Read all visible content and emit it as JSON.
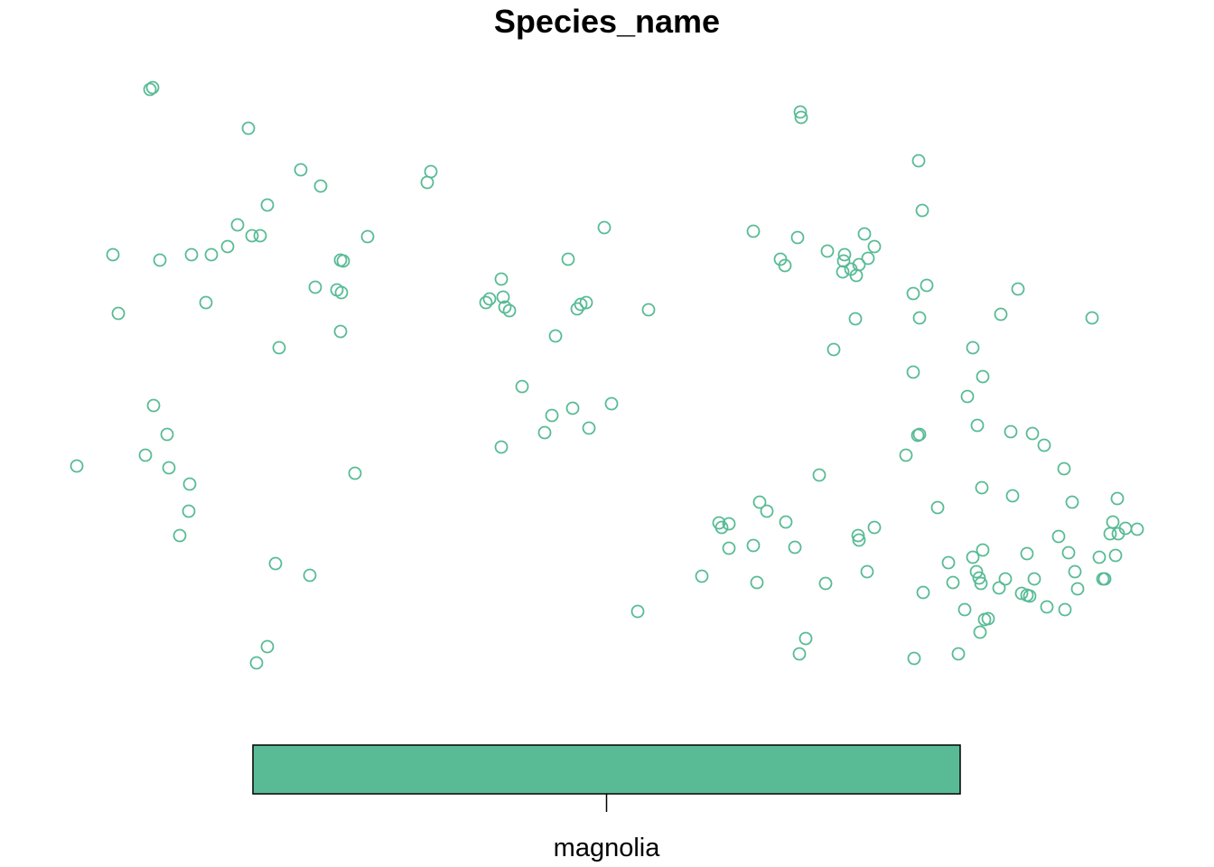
{
  "chart_data": {
    "type": "scatter",
    "title": "Species_name",
    "xlabel": "",
    "ylabel": "",
    "axes_shown": false,
    "grid": false,
    "marker": "open-circle",
    "series": [
      {
        "name": "magnolia",
        "color": "#58BB95",
        "points": [
          [
            166,
            99
          ],
          [
            169,
            97
          ],
          [
            275,
            142
          ],
          [
            333,
            188
          ],
          [
            355,
            206
          ],
          [
            473,
            202
          ],
          [
            477,
            190
          ],
          [
            125,
            282
          ],
          [
            177,
            288
          ],
          [
            212,
            282
          ],
          [
            234,
            282
          ],
          [
            252,
            273
          ],
          [
            263,
            249
          ],
          [
            279,
            261
          ],
          [
            288,
            261
          ],
          [
            296,
            227
          ],
          [
            377,
            288
          ],
          [
            380,
            289
          ],
          [
            407,
            262
          ],
          [
            349,
            318
          ],
          [
            373,
            321
          ],
          [
            378,
            324
          ],
          [
            131,
            347
          ],
          [
            228,
            335
          ],
          [
            309,
            385
          ],
          [
            377,
            367
          ],
          [
            170,
            449
          ],
          [
            185,
            481
          ],
          [
            161,
            504
          ],
          [
            85,
            516
          ],
          [
            187,
            518
          ],
          [
            210,
            536
          ],
          [
            209,
            566
          ],
          [
            199,
            593
          ],
          [
            393,
            524
          ],
          [
            305,
            624
          ],
          [
            343,
            637
          ],
          [
            296,
            716
          ],
          [
            284,
            734
          ],
          [
            555,
            309
          ],
          [
            538,
            335
          ],
          [
            542,
            331
          ],
          [
            557,
            329
          ],
          [
            559,
            340
          ],
          [
            564,
            344
          ],
          [
            629,
            287
          ],
          [
            669,
            252
          ],
          [
            639,
            342
          ],
          [
            643,
            337
          ],
          [
            649,
            335
          ],
          [
            718,
            343
          ],
          [
            615,
            372
          ],
          [
            578,
            428
          ],
          [
            611,
            460
          ],
          [
            634,
            452
          ],
          [
            677,
            447
          ],
          [
            603,
            479
          ],
          [
            652,
            474
          ],
          [
            555,
            495
          ],
          [
            706,
            677
          ],
          [
            886,
            124
          ],
          [
            887,
            130
          ],
          [
            1017,
            178
          ],
          [
            1021,
            233
          ],
          [
            834,
            256
          ],
          [
            883,
            263
          ],
          [
            864,
            287
          ],
          [
            869,
            294
          ],
          [
            916,
            278
          ],
          [
            935,
            282
          ],
          [
            957,
            259
          ],
          [
            968,
            273
          ],
          [
            934,
            289
          ],
          [
            961,
            286
          ],
          [
            951,
            293
          ],
          [
            933,
            301
          ],
          [
            942,
            298
          ],
          [
            948,
            305
          ],
          [
            1026,
            316
          ],
          [
            1011,
            325
          ],
          [
            1127,
            320
          ],
          [
            1018,
            352
          ],
          [
            947,
            353
          ],
          [
            1108,
            348
          ],
          [
            1209,
            352
          ],
          [
            923,
            387
          ],
          [
            1077,
            385
          ],
          [
            1011,
            412
          ],
          [
            1088,
            417
          ],
          [
            1071,
            439
          ],
          [
            1082,
            471
          ],
          [
            1018,
            481
          ],
          [
            1016,
            482
          ],
          [
            1003,
            504
          ],
          [
            1119,
            478
          ],
          [
            1143,
            480
          ],
          [
            1156,
            493
          ],
          [
            907,
            526
          ],
          [
            1178,
            519
          ],
          [
            1087,
            540
          ],
          [
            1121,
            549
          ],
          [
            1187,
            556
          ],
          [
            1038,
            562
          ],
          [
            841,
            556
          ],
          [
            849,
            566
          ],
          [
            870,
            578
          ],
          [
            796,
            579
          ],
          [
            799,
            584
          ],
          [
            807,
            580
          ],
          [
            807,
            607
          ],
          [
            834,
            604
          ],
          [
            880,
            606
          ],
          [
            950,
            593
          ],
          [
            951,
            598
          ],
          [
            968,
            584
          ],
          [
            1237,
            552
          ],
          [
            1232,
            578
          ],
          [
            1246,
            585
          ],
          [
            1259,
            586
          ],
          [
            1229,
            591
          ],
          [
            1238,
            591
          ],
          [
            1172,
            594
          ],
          [
            1088,
            609
          ],
          [
            1077,
            617
          ],
          [
            1050,
            623
          ],
          [
            1137,
            613
          ],
          [
            1183,
            612
          ],
          [
            1217,
            617
          ],
          [
            1235,
            615
          ],
          [
            777,
            638
          ],
          [
            838,
            645
          ],
          [
            914,
            646
          ],
          [
            960,
            633
          ],
          [
            1081,
            633
          ],
          [
            1084,
            640
          ],
          [
            1086,
            646
          ],
          [
            1055,
            645
          ],
          [
            1113,
            641
          ],
          [
            1145,
            641
          ],
          [
            1106,
            651
          ],
          [
            1190,
            633
          ],
          [
            1223,
            641
          ],
          [
            1221,
            641
          ],
          [
            1193,
            652
          ],
          [
            1022,
            656
          ],
          [
            1131,
            657
          ],
          [
            1140,
            660
          ],
          [
            1137,
            659
          ],
          [
            1159,
            672
          ],
          [
            1179,
            675
          ],
          [
            1068,
            675
          ],
          [
            1094,
            685
          ],
          [
            1090,
            686
          ],
          [
            1085,
            700
          ],
          [
            892,
            707
          ],
          [
            885,
            724
          ],
          [
            1012,
            729
          ],
          [
            1061,
            724
          ]
        ]
      }
    ],
    "legend": {
      "type": "color-bar",
      "placement": "bottom",
      "labels": [
        "magnolia"
      ]
    }
  }
}
